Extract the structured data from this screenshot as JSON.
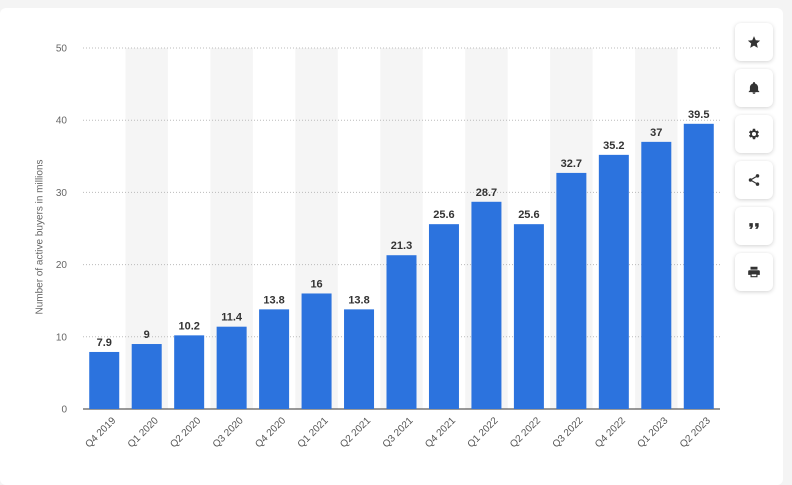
{
  "chart_data": {
    "type": "bar",
    "ylabel": "Number of active buyers in millions",
    "xlabel": "",
    "ylim": [
      0,
      50
    ],
    "yticks": [
      0,
      10,
      20,
      30,
      40,
      50
    ],
    "grid": true,
    "categories": [
      "Q4 2019",
      "Q1 2020",
      "Q2 2020",
      "Q3 2020",
      "Q4 2020",
      "Q1 2021",
      "Q2 2021",
      "Q3 2021",
      "Q4 2021",
      "Q1 2022",
      "Q2 2022",
      "Q3 2022",
      "Q4 2022",
      "Q1 2023",
      "Q2 2023"
    ],
    "values": [
      7.9,
      9,
      10.2,
      11.4,
      13.8,
      16,
      13.8,
      21.3,
      25.6,
      28.7,
      25.6,
      32.7,
      35.2,
      37,
      39.5
    ],
    "colors": {
      "bar": "#2c73de",
      "grid": "#bbbbbb",
      "band": "#f5f5f5"
    }
  },
  "sidebar": {
    "buttons": [
      {
        "id": "favorite",
        "icon": "star-icon"
      },
      {
        "id": "notify",
        "icon": "bell-icon"
      },
      {
        "id": "settings",
        "icon": "gear-icon"
      },
      {
        "id": "share",
        "icon": "share-icon"
      },
      {
        "id": "cite",
        "icon": "quote-icon"
      },
      {
        "id": "print",
        "icon": "print-icon"
      }
    ]
  }
}
